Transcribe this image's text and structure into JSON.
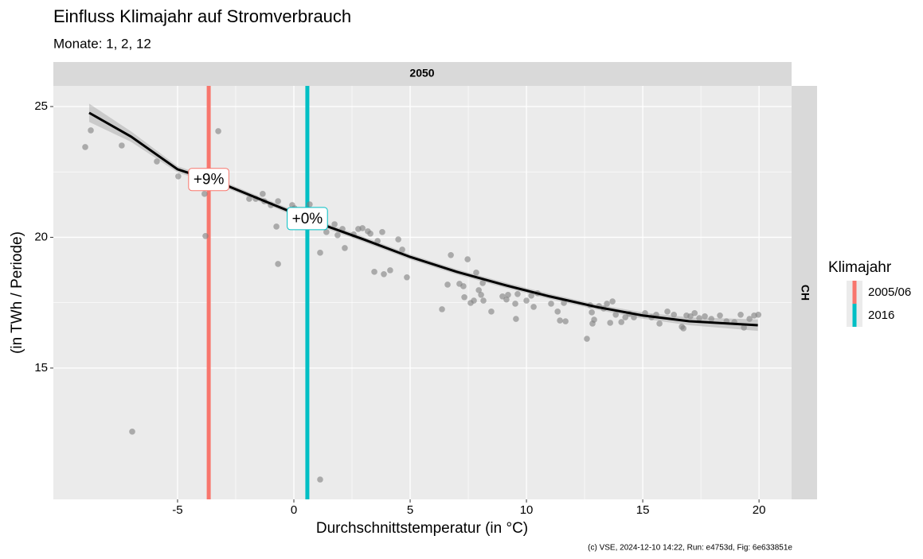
{
  "chart_data": {
    "type": "scatter",
    "title": "Einfluss Klimajahr auf Stromverbrauch",
    "subtitle": "Monate: 1, 2, 12",
    "x_label": "Durchschnittstemperatur (in °C)",
    "y_label": "(in TWh / Periode)",
    "caption": "(c) VSE, 2024-12-10 14:22, Run: e4753d, Fig: 6e633851e",
    "facet_col": "2050",
    "facet_row": "CH",
    "legend_title": "Klimajahr",
    "xlim": [
      -10.34,
      21.4
    ],
    "ylim": [
      9.98,
      25.79
    ],
    "xticks": [
      -5,
      0,
      5,
      10,
      15,
      20
    ],
    "yticks": [
      15,
      20,
      25
    ],
    "grid": true,
    "series": [
      {
        "color": "#7f7f7f",
        "x": [
          -8.97,
          -8.73,
          -7.4,
          -6.95,
          -5.89,
          -4.97,
          -3.84,
          -3.8,
          -3.25,
          -1.92,
          -1.64,
          -1.34,
          -1.27,
          -0.99,
          -0.68,
          -0.75,
          -0.68,
          -0.07,
          0.03,
          0.21,
          0.38,
          0.68,
          0.75,
          0.96,
          1.13,
          1.13,
          1.23,
          1.4,
          1.75,
          1.88,
          2.09,
          2.19,
          2.57,
          2.77,
          2.95,
          3.18,
          3.29,
          3.46,
          3.6,
          3.8,
          3.87,
          4.14,
          4.49,
          4.66,
          4.86,
          6.37,
          6.61,
          6.75,
          7.12,
          7.29,
          7.33,
          7.47,
          7.6,
          7.74,
          7.84,
          7.95,
          8.05,
          8.12,
          8.15,
          8.49,
          8.97,
          9.14,
          9.21,
          9.52,
          9.55,
          9.62,
          10.0,
          10.21,
          10.31,
          10.48,
          11.06,
          11.34,
          11.44,
          11.61,
          11.68,
          12.6,
          12.74,
          12.81,
          12.84,
          12.91,
          13.12,
          13.32,
          13.46,
          13.6,
          13.7,
          13.84,
          14.08,
          14.25,
          14.42,
          14.62,
          15.1,
          15.38,
          15.58,
          15.72,
          16.06,
          16.34,
          16.68,
          16.75,
          16.88,
          17.05,
          17.23,
          17.43,
          17.67,
          17.95,
          18.32,
          18.6,
          18.94,
          19.21,
          19.35,
          19.59,
          19.79,
          19.97
        ],
        "values": [
          23.45,
          24.09,
          23.51,
          12.57,
          22.9,
          22.33,
          21.66,
          20.05,
          24.06,
          21.47,
          21.47,
          21.66,
          21.38,
          21.23,
          21.38,
          20.41,
          18.98,
          21.23,
          21.11,
          21.02,
          20.87,
          21.26,
          20.41,
          20.87,
          19.41,
          10.74,
          20.5,
          20.2,
          20.5,
          20.08,
          20.32,
          19.59,
          20.11,
          20.32,
          20.35,
          20.23,
          20.14,
          18.68,
          19.86,
          20.2,
          18.59,
          18.74,
          19.92,
          19.53,
          18.47,
          17.25,
          18.19,
          19.32,
          18.22,
          18.13,
          17.71,
          19.16,
          17.49,
          17.58,
          18.65,
          17.98,
          17.8,
          18.25,
          17.58,
          17.16,
          17.74,
          17.62,
          17.8,
          17.46,
          16.88,
          17.83,
          17.58,
          17.77,
          17.34,
          17.86,
          17.46,
          17.16,
          16.82,
          17.49,
          16.79,
          16.12,
          17.4,
          17.13,
          16.7,
          16.85,
          17.37,
          17.28,
          17.46,
          16.73,
          17.55,
          17.04,
          16.76,
          16.94,
          17.07,
          16.94,
          17.1,
          16.94,
          17.04,
          16.7,
          17.16,
          17.04,
          16.58,
          16.52,
          17.01,
          16.98,
          17.1,
          16.91,
          16.98,
          16.88,
          17.01,
          16.79,
          16.76,
          17.04,
          16.55,
          16.88,
          17.01,
          17.04
        ]
      }
    ],
    "smooth": {
      "color": "#000000",
      "x": [
        -8.8,
        -7,
        -5,
        -3,
        -1,
        0,
        1,
        3,
        5,
        7,
        9,
        11,
        13,
        15,
        17,
        19.95
      ],
      "y": [
        24.76,
        23.85,
        22.6,
        22.02,
        21.29,
        20.93,
        20.56,
        19.92,
        19.25,
        18.68,
        18.19,
        17.74,
        17.34,
        17.01,
        16.79,
        16.64
      ],
      "lower": [
        24.41,
        23.65,
        22.48,
        21.92,
        21.19,
        20.83,
        20.46,
        19.82,
        19.15,
        18.58,
        18.09,
        17.64,
        17.24,
        16.89,
        16.64,
        16.42
      ],
      "upper": [
        25.11,
        24.05,
        22.72,
        22.12,
        21.39,
        21.03,
        20.66,
        20.02,
        19.35,
        18.78,
        18.29,
        17.84,
        17.44,
        17.13,
        16.94,
        16.86
      ]
    },
    "vlines": [
      {
        "name": "2005/06",
        "color": "#F8766D",
        "x": -3.66,
        "label": "+9%"
      },
      {
        "name": "2016",
        "color": "#00BFC4",
        "x": 0.58,
        "label": "+0%"
      }
    ]
  }
}
